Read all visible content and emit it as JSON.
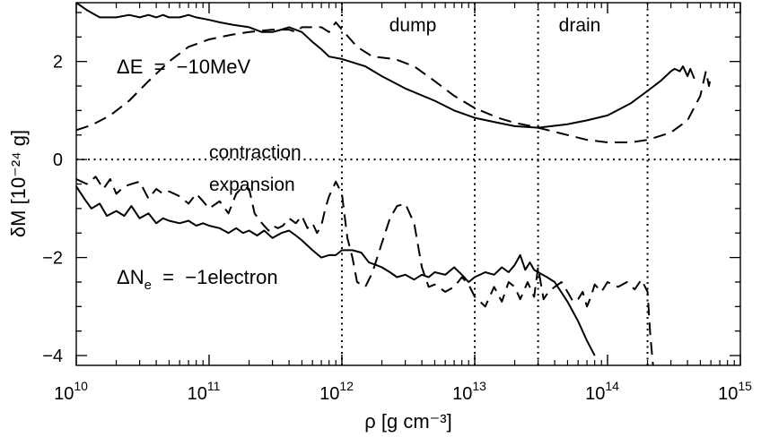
{
  "chart_data": {
    "type": "line",
    "title": "",
    "xlabel": "ρ [g cm⁻³]",
    "ylabel": "δM [10⁻²⁴ g]",
    "xscale": "log",
    "xlim": [
      10000000000.0,
      1000000000000000.0
    ],
    "ylim": [
      -4.2,
      3.2
    ],
    "grid": false,
    "legend": "none",
    "x_ticks": [
      {
        "base": "10",
        "exp": "10"
      },
      {
        "base": "10",
        "exp": "11"
      },
      {
        "base": "10",
        "exp": "12"
      },
      {
        "base": "10",
        "exp": "13"
      },
      {
        "base": "10",
        "exp": "14"
      },
      {
        "base": "10",
        "exp": "15"
      }
    ],
    "y_ticks": [
      "−4",
      "−2",
      "0",
      "2"
    ],
    "y_tick_values": [
      -4,
      -2,
      0,
      2
    ],
    "reference_lines": [
      {
        "axis": "y",
        "value": 0,
        "style": "dotted"
      },
      {
        "axis": "x",
        "value": 1000000000000.0,
        "style": "dotted"
      },
      {
        "axis": "x",
        "value": 10000000000000.0,
        "style": "dotted"
      },
      {
        "axis": "x",
        "value": 30000000000000.0,
        "style": "dotted"
      },
      {
        "axis": "x",
        "value": 200000000000000.0,
        "style": "dotted"
      }
    ],
    "annotations": {
      "region_dump": "dump",
      "region_drain": "drain",
      "contraction": "contraction",
      "expansion": "expansion",
      "dE_label": "ΔE  =  −10MeV",
      "dNe_prefix": "ΔN",
      "dNe_sub": "e",
      "dNe_suffix": "  =  −1electron"
    },
    "series": [
      {
        "style": "solid",
        "x": [
          10000000000.0,
          12000000000.0,
          15000000000.0,
          20000000000.0,
          25000000000.0,
          30000000000.0,
          35000000000.0,
          40000000000.0,
          45000000000.0,
          50000000000.0,
          60000000000.0,
          70000000000.0,
          80000000000.0,
          100000000000.0,
          120000000000.0,
          150000000000.0,
          200000000000.0,
          250000000000.0,
          300000000000.0,
          350000000000.0,
          400000000000.0,
          500000000000.0,
          600000000000.0,
          700000000000.0,
          800000000000.0,
          1000000000000.0,
          1500000000000.0,
          2000000000000.0,
          3000000000000.0,
          5000000000000.0,
          7000000000000.0,
          10000000000000.0,
          15000000000000.0,
          20000000000000.0,
          30000000000000.0,
          50000000000000.0,
          70000000000000.0,
          100000000000000.0,
          150000000000000.0,
          200000000000000.0,
          250000000000000.0,
          300000000000000.0,
          320000000000000.0,
          350000000000000.0,
          370000000000000.0,
          400000000000000.0,
          420000000000000.0,
          450000000000000.0
        ],
        "y": [
          3.2,
          3.05,
          2.9,
          2.9,
          2.95,
          2.9,
          2.95,
          2.9,
          2.95,
          2.9,
          2.9,
          2.95,
          2.9,
          2.85,
          2.8,
          2.75,
          2.7,
          2.6,
          2.6,
          2.65,
          2.7,
          2.6,
          2.4,
          2.25,
          2.1,
          2.05,
          1.9,
          1.7,
          1.45,
          1.2,
          1.0,
          0.85,
          0.75,
          0.68,
          0.65,
          0.72,
          0.8,
          0.9,
          1.15,
          1.4,
          1.6,
          1.8,
          1.85,
          1.8,
          1.9,
          1.7,
          1.85,
          1.65
        ]
      },
      {
        "style": "dashed",
        "x": [
          10000000000.0,
          13000000000.0,
          18000000000.0,
          25000000000.0,
          35000000000.0,
          50000000000.0,
          70000000000.0,
          100000000000.0,
          150000000000.0,
          200000000000.0,
          300000000000.0,
          400000000000.0,
          450000000000.0,
          500000000000.0,
          600000000000.0,
          700000000000.0,
          800000000000.0,
          900000000000.0,
          1000000000000.0,
          1300000000000.0,
          1700000000000.0,
          2500000000000.0,
          3500000000000.0,
          5000000000000.0,
          7000000000000.0,
          10000000000000.0,
          15000000000000.0,
          20000000000000.0,
          30000000000000.0,
          50000000000000.0,
          70000000000000.0,
          100000000000000.0,
          150000000000000.0,
          200000000000000.0,
          300000000000000.0,
          400000000000000.0,
          500000000000000.0,
          550000000000000.0,
          580000000000000.0,
          600000000000000.0
        ],
        "y": [
          0.6,
          0.7,
          0.9,
          1.2,
          1.6,
          2.0,
          2.3,
          2.45,
          2.55,
          2.6,
          2.65,
          2.65,
          2.6,
          2.7,
          2.7,
          2.7,
          2.6,
          2.8,
          2.65,
          2.3,
          2.1,
          2.05,
          1.9,
          1.6,
          1.3,
          1.05,
          0.85,
          0.75,
          0.65,
          0.5,
          0.4,
          0.35,
          0.35,
          0.4,
          0.55,
          0.8,
          1.3,
          1.8,
          1.5,
          1.7
        ]
      },
      {
        "style": "solid",
        "x": [
          10000000000.0,
          11500000000.0,
          13000000000.0,
          15000000000.0,
          17000000000.0,
          20000000000.0,
          23000000000.0,
          26000000000.0,
          30000000000.0,
          35000000000.0,
          40000000000.0,
          45000000000.0,
          50000000000.0,
          60000000000.0,
          70000000000.0,
          80000000000.0,
          90000000000.0,
          100000000000.0,
          120000000000.0,
          140000000000.0,
          160000000000.0,
          180000000000.0,
          200000000000.0,
          230000000000.0,
          260000000000.0,
          300000000000.0,
          350000000000.0,
          400000000000.0,
          450000000000.0,
          500000000000.0,
          600000000000.0,
          700000000000.0,
          800000000000.0,
          900000000000.0,
          1000000000000.0,
          1200000000000.0,
          1400000000000.0,
          1600000000000.0,
          1800000000000.0,
          2000000000000.0,
          2300000000000.0,
          2600000000000.0,
          3000000000000.0,
          3500000000000.0,
          4000000000000.0,
          4500000000000.0,
          5000000000000.0,
          6000000000000.0,
          7000000000000.0,
          8000000000000.0,
          9000000000000.0,
          10000000000000.0,
          12000000000000.0,
          14000000000000.0,
          16000000000000.0,
          18000000000000.0,
          20000000000000.0,
          22000000000000.0,
          24000000000000.0,
          26000000000000.0,
          28000000000000.0,
          30000000000000.0,
          35000000000000.0,
          40000000000000.0,
          50000000000000.0,
          60000000000000.0,
          70000000000000.0,
          80000000000000.0
        ],
        "y": [
          -0.55,
          -0.8,
          -1.0,
          -0.9,
          -1.15,
          -1.05,
          -1.15,
          -0.95,
          -1.2,
          -1.1,
          -1.3,
          -1.2,
          -1.25,
          -1.3,
          -1.25,
          -1.35,
          -1.3,
          -1.35,
          -1.4,
          -1.5,
          -1.4,
          -1.5,
          -1.45,
          -1.55,
          -1.45,
          -1.6,
          -1.5,
          -1.45,
          -1.55,
          -1.65,
          -1.85,
          -2.0,
          -1.95,
          -1.95,
          -1.85,
          -1.85,
          -1.9,
          -2.1,
          -2.15,
          -2.2,
          -2.3,
          -2.4,
          -2.35,
          -2.45,
          -2.35,
          -2.4,
          -2.3,
          -2.35,
          -2.2,
          -2.35,
          -2.5,
          -2.4,
          -2.3,
          -2.35,
          -2.2,
          -2.3,
          -2.15,
          -1.95,
          -2.25,
          -2.1,
          -2.25,
          -2.3,
          -2.4,
          -2.5,
          -2.9,
          -3.3,
          -3.7,
          -4.0
        ]
      },
      {
        "style": "dashed",
        "x": [
          10000000000.0,
          12000000000.0,
          14000000000.0,
          16000000000.0,
          18000000000.0,
          20000000000.0,
          23000000000.0,
          26000000000.0,
          30000000000.0,
          35000000000.0,
          40000000000.0,
          45000000000.0,
          50000000000.0,
          60000000000.0,
          70000000000.0,
          80000000000.0,
          90000000000.0,
          100000000000.0,
          120000000000.0,
          140000000000.0,
          160000000000.0,
          180000000000.0,
          200000000000.0,
          220000000000.0,
          250000000000.0,
          280000000000.0,
          300000000000.0,
          330000000000.0,
          360000000000.0,
          400000000000.0,
          450000000000.0,
          500000000000.0,
          550000000000.0,
          600000000000.0,
          650000000000.0,
          700000000000.0,
          750000000000.0,
          800000000000.0,
          850000000000.0,
          900000000000.0,
          1000000000000.0,
          1100000000000.0,
          1200000000000.0,
          1300000000000.0,
          1500000000000.0,
          1700000000000.0,
          2000000000000.0,
          2300000000000.0,
          2600000000000.0,
          3000000000000.0,
          3500000000000.0,
          4000000000000.0,
          4500000000000.0,
          5000000000000.0,
          6000000000000.0,
          7000000000000.0,
          8000000000000.0,
          9000000000000.0,
          10000000000000.0,
          11000000000000.0,
          12000000000000.0,
          14000000000000.0,
          16000000000000.0,
          18000000000000.0,
          20000000000000.0,
          22000000000000.0,
          25000000000000.0,
          28000000000000.0,
          30000000000000.0,
          33000000000000.0,
          36000000000000.0,
          40000000000000.0,
          45000000000000.0,
          50000000000000.0,
          55000000000000.0,
          60000000000000.0,
          65000000000000.0,
          70000000000000.0,
          75000000000000.0,
          80000000000000.0,
          90000000000000.0,
          100000000000000.0,
          120000000000000.0,
          140000000000000.0,
          160000000000000.0,
          180000000000000.0,
          200000000000000.0,
          210000000000000.0,
          220000000000000.0
        ],
        "y": [
          -0.4,
          -0.5,
          -0.35,
          -0.6,
          -0.4,
          -0.7,
          -0.55,
          -0.5,
          -0.45,
          -0.8,
          -0.6,
          -0.7,
          -0.65,
          -0.75,
          -0.9,
          -0.7,
          -0.85,
          -1.0,
          -0.85,
          -1.1,
          -0.7,
          -0.55,
          -0.6,
          -1.1,
          -1.3,
          -1.45,
          -1.35,
          -1.4,
          -1.35,
          -1.2,
          -1.3,
          -1.15,
          -1.4,
          -1.3,
          -1.5,
          -1.35,
          -1.0,
          -0.75,
          -0.6,
          -0.45,
          -0.7,
          -1.6,
          -2.0,
          -2.5,
          -2.6,
          -2.3,
          -1.7,
          -1.2,
          -0.95,
          -0.9,
          -1.3,
          -2.2,
          -2.6,
          -2.55,
          -2.7,
          -2.6,
          -2.4,
          -2.55,
          -2.8,
          -2.9,
          -3.0,
          -2.6,
          -2.9,
          -2.5,
          -2.6,
          -2.85,
          -2.5,
          -2.8,
          -2.2,
          -2.85,
          -2.7,
          -2.6,
          -2.5,
          -2.7,
          -2.9,
          -2.85,
          -2.7,
          -3.0,
          -2.8,
          -2.55,
          -2.7,
          -2.5,
          -2.6,
          -2.5,
          -2.65,
          -2.45,
          -2.7,
          -3.6,
          -4.2
        ]
      }
    ]
  }
}
